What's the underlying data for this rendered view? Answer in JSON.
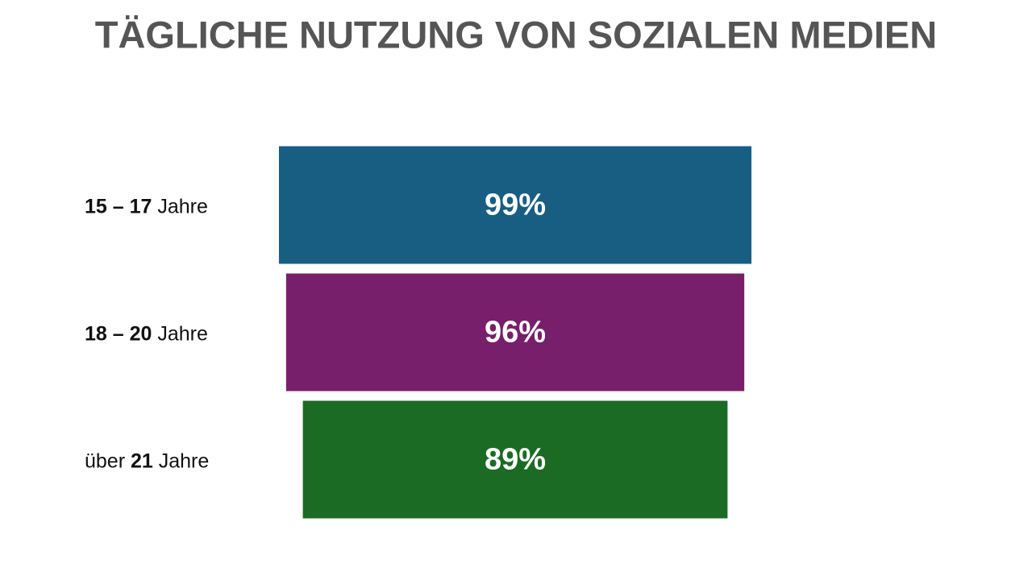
{
  "chart_data": {
    "type": "funnel",
    "title": "TÄGLICHE NUTZUNG VON SOZIALEN MEDIEN",
    "categories": [
      "15 – 17 Jahre",
      "18 – 20 Jahre",
      "über 21 Jahre"
    ],
    "values": [
      99,
      96,
      89
    ],
    "value_labels": [
      "99%",
      "96%",
      "89%"
    ],
    "colors": [
      "#175e82",
      "#771f6b",
      "#1b6b25"
    ]
  }
}
